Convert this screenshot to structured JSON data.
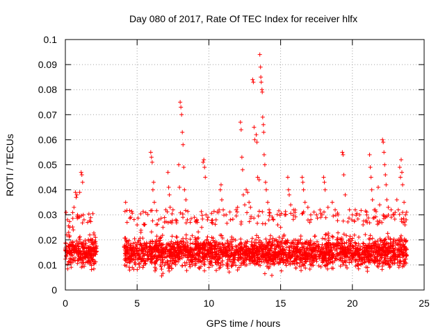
{
  "chart_data": {
    "type": "scatter",
    "title": "Day 080 of 2017, Rate Of TEC Index for receiver hlfx",
    "xlabel": "GPS time / hours",
    "ylabel": "ROTI / TECUs",
    "xlim": [
      0,
      25
    ],
    "ylim": [
      0,
      0.1
    ],
    "xticks": [
      0,
      5,
      10,
      15,
      20,
      25
    ],
    "yticks": [
      0,
      0.01,
      0.02,
      0.03,
      0.04,
      0.05,
      0.06,
      0.07,
      0.08,
      0.09,
      0.1
    ],
    "xtick_labels": [
      "0",
      "5",
      "10",
      "15",
      "20",
      "25"
    ],
    "ytick_labels": [
      "0",
      "0.01",
      "0.02",
      "0.03",
      "0.04",
      "0.05",
      "0.06",
      "0.07",
      "0.08",
      "0.09",
      "0.1"
    ],
    "grid": true,
    "marker": "plus",
    "color": "#ff0000",
    "series": [
      {
        "name": "ROTI",
        "data_segments": [
          {
            "x_range": [
              0.0,
              2.2
            ],
            "typical_range": [
              0.005,
              0.025
            ]
          },
          {
            "x_range": [
              4.1,
              23.8
            ],
            "typical_range": [
              0.004,
              0.026
            ]
          }
        ],
        "gap": [
          2.2,
          4.1
        ],
        "points": [
          [
            0.05,
            0.031
          ],
          [
            0.1,
            0.022
          ],
          [
            0.15,
            0.028
          ],
          [
            0.3,
            0.025
          ],
          [
            0.55,
            0.024
          ],
          [
            0.6,
            0.033
          ],
          [
            0.7,
            0.039
          ],
          [
            0.75,
            0.037
          ],
          [
            0.8,
            0.038
          ],
          [
            0.85,
            0.03
          ],
          [
            0.9,
            0.029
          ],
          [
            1.0,
            0.039
          ],
          [
            1.1,
            0.047
          ],
          [
            1.15,
            0.046
          ],
          [
            1.2,
            0.043
          ],
          [
            1.25,
            0.03
          ],
          [
            1.3,
            0.028
          ],
          [
            1.55,
            0.027
          ],
          [
            1.7,
            0.022
          ],
          [
            1.9,
            0.02
          ],
          [
            2.0,
            0.022
          ],
          [
            2.1,
            0.021
          ],
          [
            4.2,
            0.035
          ],
          [
            4.3,
            0.027
          ],
          [
            5.0,
            0.026
          ],
          [
            5.5,
            0.026
          ],
          [
            5.95,
            0.055
          ],
          [
            6.0,
            0.053
          ],
          [
            6.05,
            0.051
          ],
          [
            6.1,
            0.04
          ],
          [
            6.15,
            0.043
          ],
          [
            6.2,
            0.035
          ],
          [
            6.5,
            0.028
          ],
          [
            6.8,
            0.025
          ],
          [
            7.0,
            0.032
          ],
          [
            7.15,
            0.047
          ],
          [
            7.2,
            0.041
          ],
          [
            7.25,
            0.038
          ],
          [
            7.3,
            0.033
          ],
          [
            7.5,
            0.032
          ],
          [
            7.7,
            0.028
          ],
          [
            7.9,
            0.05
          ],
          [
            7.95,
            0.041
          ],
          [
            8.0,
            0.075
          ],
          [
            8.05,
            0.073
          ],
          [
            8.1,
            0.07
          ],
          [
            8.15,
            0.063
          ],
          [
            8.2,
            0.058
          ],
          [
            8.25,
            0.049
          ],
          [
            8.3,
            0.04
          ],
          [
            8.4,
            0.036
          ],
          [
            8.5,
            0.028
          ],
          [
            8.7,
            0.027
          ],
          [
            9.2,
            0.027
          ],
          [
            9.5,
            0.025
          ],
          [
            9.6,
            0.051
          ],
          [
            9.65,
            0.052
          ],
          [
            9.7,
            0.049
          ],
          [
            9.75,
            0.045
          ],
          [
            9.8,
            0.03
          ],
          [
            9.9,
            0.028
          ],
          [
            10.2,
            0.027
          ],
          [
            10.5,
            0.028
          ],
          [
            10.8,
            0.04
          ],
          [
            10.85,
            0.042
          ],
          [
            10.9,
            0.036
          ],
          [
            11.0,
            0.032
          ],
          [
            11.2,
            0.03
          ],
          [
            11.5,
            0.028
          ],
          [
            11.9,
            0.032
          ],
          [
            12.0,
            0.033
          ],
          [
            12.2,
            0.067
          ],
          [
            12.25,
            0.064
          ],
          [
            12.3,
            0.053
          ],
          [
            12.35,
            0.048
          ],
          [
            12.4,
            0.038
          ],
          [
            12.5,
            0.034
          ],
          [
            12.6,
            0.04
          ],
          [
            12.7,
            0.039
          ],
          [
            12.8,
            0.035
          ],
          [
            12.9,
            0.033
          ],
          [
            13.05,
            0.084
          ],
          [
            13.1,
            0.083
          ],
          [
            13.15,
            0.065
          ],
          [
            13.2,
            0.06
          ],
          [
            13.3,
            0.062
          ],
          [
            13.35,
            0.059
          ],
          [
            13.4,
            0.045
          ],
          [
            13.5,
            0.044
          ],
          [
            13.55,
            0.094
          ],
          [
            13.6,
            0.089
          ],
          [
            13.62,
            0.085
          ],
          [
            13.65,
            0.083
          ],
          [
            13.7,
            0.08
          ],
          [
            13.72,
            0.079
          ],
          [
            13.75,
            0.069
          ],
          [
            13.8,
            0.066
          ],
          [
            13.82,
            0.063
          ],
          [
            13.85,
            0.054
          ],
          [
            13.9,
            0.05
          ],
          [
            13.95,
            0.043
          ],
          [
            14.0,
            0.04
          ],
          [
            14.1,
            0.035
          ],
          [
            14.2,
            0.032
          ],
          [
            14.5,
            0.028
          ],
          [
            14.8,
            0.026
          ],
          [
            15.0,
            0.025
          ],
          [
            15.3,
            0.03
          ],
          [
            15.5,
            0.045
          ],
          [
            15.55,
            0.04
          ],
          [
            15.6,
            0.038
          ],
          [
            15.7,
            0.034
          ],
          [
            15.9,
            0.032
          ],
          [
            16.0,
            0.031
          ],
          [
            16.5,
            0.045
          ],
          [
            16.55,
            0.043
          ],
          [
            16.6,
            0.04
          ],
          [
            16.7,
            0.035
          ],
          [
            16.9,
            0.033
          ],
          [
            17.1,
            0.03
          ],
          [
            17.5,
            0.03
          ],
          [
            17.8,
            0.029
          ],
          [
            18.0,
            0.045
          ],
          [
            18.05,
            0.043
          ],
          [
            18.1,
            0.04
          ],
          [
            18.3,
            0.033
          ],
          [
            18.6,
            0.035
          ],
          [
            18.8,
            0.032
          ],
          [
            19.0,
            0.03
          ],
          [
            19.3,
            0.055
          ],
          [
            19.35,
            0.054
          ],
          [
            19.4,
            0.046
          ],
          [
            19.5,
            0.038
          ],
          [
            19.8,
            0.032
          ],
          [
            20.0,
            0.03
          ],
          [
            20.2,
            0.032
          ],
          [
            20.5,
            0.03
          ],
          [
            21.0,
            0.03
          ],
          [
            21.2,
            0.054
          ],
          [
            21.25,
            0.049
          ],
          [
            21.3,
            0.045
          ],
          [
            21.35,
            0.04
          ],
          [
            21.4,
            0.036
          ],
          [
            21.6,
            0.032
          ],
          [
            21.8,
            0.041
          ],
          [
            21.9,
            0.034
          ],
          [
            22.1,
            0.06
          ],
          [
            22.15,
            0.059
          ],
          [
            22.2,
            0.055
          ],
          [
            22.25,
            0.05
          ],
          [
            22.3,
            0.046
          ],
          [
            22.35,
            0.042
          ],
          [
            22.4,
            0.036
          ],
          [
            22.5,
            0.033
          ],
          [
            22.7,
            0.032
          ],
          [
            22.9,
            0.03
          ],
          [
            23.1,
            0.036
          ],
          [
            23.2,
            0.032
          ],
          [
            23.3,
            0.049
          ],
          [
            23.35,
            0.045
          ],
          [
            23.4,
            0.052
          ],
          [
            23.45,
            0.047
          ],
          [
            23.5,
            0.042
          ],
          [
            23.6,
            0.035
          ],
          [
            23.7,
            0.03
          ],
          [
            23.75,
            0.028
          ]
        ]
      }
    ]
  }
}
